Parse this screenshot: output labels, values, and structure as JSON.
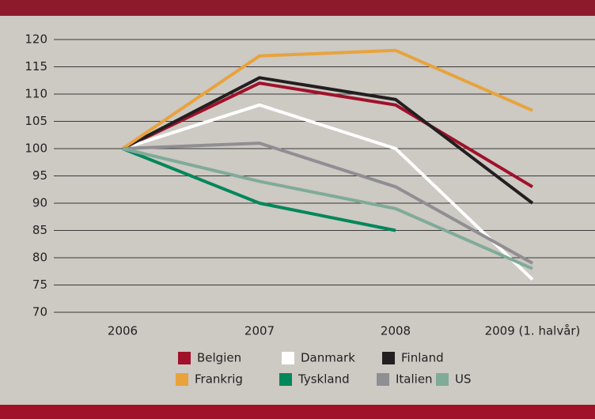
{
  "chart_data": {
    "type": "line",
    "categories": [
      "2006",
      "2007",
      "2008",
      "2009 (1. halvår)"
    ],
    "series": [
      {
        "name": "Belgien",
        "color": "#a0112a",
        "values": [
          100,
          112,
          108,
          93
        ]
      },
      {
        "name": "Danmark",
        "color": "#ffffff",
        "values": [
          100,
          108,
          100,
          76
        ]
      },
      {
        "name": "Finland",
        "color": "#231f20",
        "values": [
          100,
          113,
          109,
          90
        ]
      },
      {
        "name": "Frankrig",
        "color": "#e8a33c",
        "values": [
          100,
          117,
          118,
          107
        ]
      },
      {
        "name": "Tyskland",
        "color": "#00875a",
        "values": [
          100,
          90,
          85,
          null
        ]
      },
      {
        "name": "Italien",
        "color": "#8f8e93",
        "values": [
          100,
          101,
          93,
          79
        ]
      },
      {
        "name": "US",
        "color": "#7fab98",
        "values": [
          100,
          94,
          89,
          78
        ]
      }
    ],
    "ylim": [
      70,
      120
    ],
    "yticks": [
      70,
      75,
      80,
      85,
      90,
      95,
      100,
      105,
      110,
      115,
      120
    ],
    "grid": true,
    "legend": "bottom"
  }
}
